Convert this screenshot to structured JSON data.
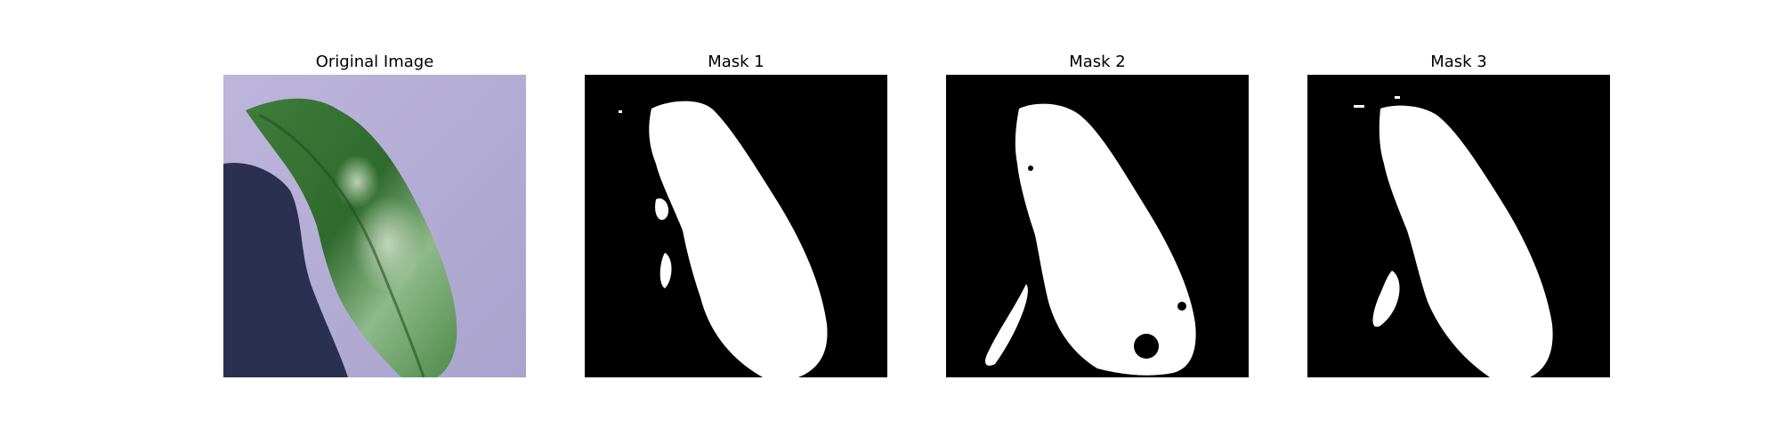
{
  "panels": [
    {
      "title": "Original Image",
      "kind": "photo",
      "subject": "leaf-photo"
    },
    {
      "title": "Mask 1",
      "kind": "mask",
      "subject": "leaf-mask"
    },
    {
      "title": "Mask 2",
      "kind": "mask",
      "subject": "leaf-mask"
    },
    {
      "title": "Mask 3",
      "kind": "mask",
      "subject": "leaf-mask"
    }
  ],
  "colors": {
    "background": "#ffffff",
    "mask_background": "#000000",
    "mask_foreground": "#ffffff",
    "photo_background": "#b3acd4",
    "shadow": "#2c3050",
    "leaf_dark": "#2f6a2e",
    "leaf_light": "#8fb98a"
  }
}
